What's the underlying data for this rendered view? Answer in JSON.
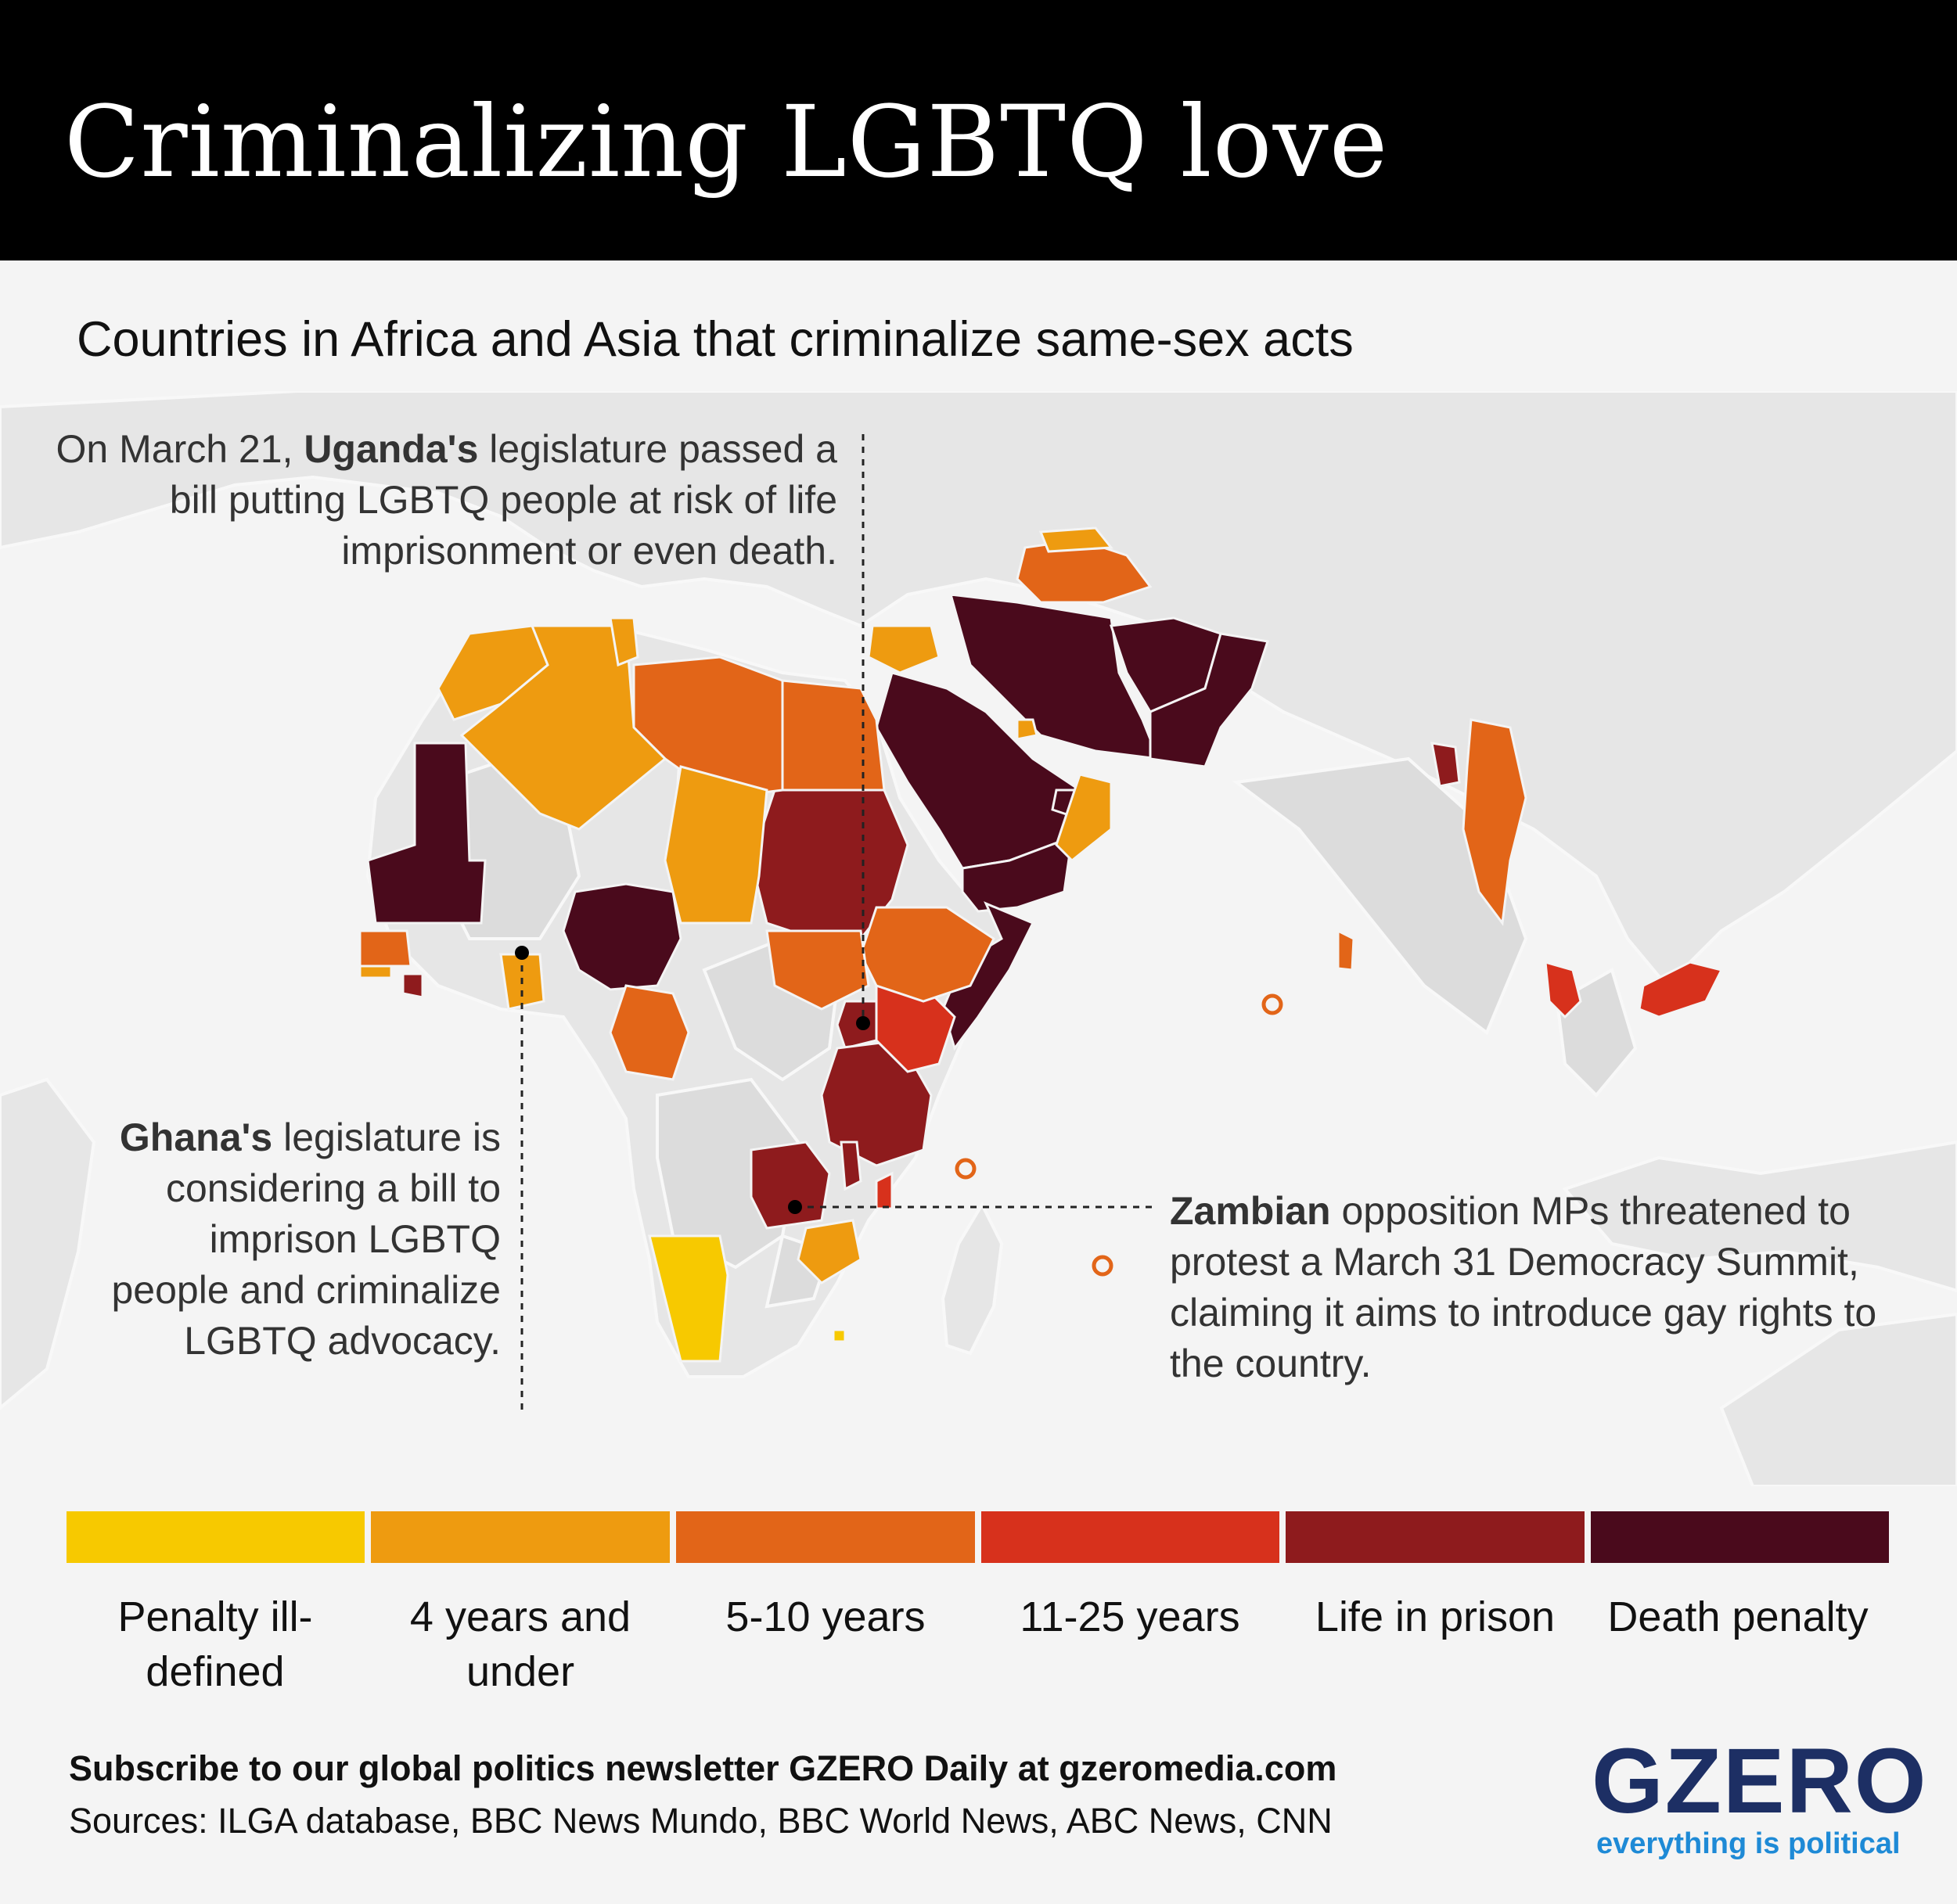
{
  "header": {
    "title": "Criminalizing LGBTQ love"
  },
  "subtitle": "Countries in Africa and Asia that criminalize same-sex acts",
  "map": {
    "region": "Africa, Middle East and South/Southeast Asia",
    "colors": {
      "penalty_ill_defined": "#f7c900",
      "four_years_and_under": "#ee9b10",
      "five_to_ten_years": "#e26518",
      "eleven_to_twentyfive_years": "#d7311c",
      "life_in_prison": "#8e1b1d",
      "death_penalty": "#4a0a1c",
      "not_criminalized": "#dcdcdc",
      "land": "#e9e9e9",
      "water": "#f4f4f4"
    },
    "icons": [
      "marker-dot-icon",
      "island-circle-icon"
    ]
  },
  "annotations": {
    "uganda": {
      "prefix": "On March 21, ",
      "country": "Uganda's",
      "suffix": " legislature passed a bill putting LGBTQ people at risk of life imprisonment or even death."
    },
    "ghana": {
      "country": "Ghana's",
      "suffix": " legislature is considering a bill to imprison LGBTQ people and criminalize LGBTQ advocacy."
    },
    "zambia": {
      "country": "Zambian",
      "suffix": " opposition MPs threatened to protest a March 31 Democracy Summit, claiming it aims to introduce gay rights to the country."
    }
  },
  "legend": [
    {
      "label": "Penalty ill-defined",
      "color": "#f7c900"
    },
    {
      "label": "4 years and under",
      "color": "#ee9b10"
    },
    {
      "label": "5-10 years",
      "color": "#e26518"
    },
    {
      "label": "11-25 years",
      "color": "#d7311c"
    },
    {
      "label": "Life in prison",
      "color": "#8e1b1d"
    },
    {
      "label": "Death penalty",
      "color": "#4a0a1c"
    }
  ],
  "footer": {
    "subscribe": "Subscribe to our global politics newsletter GZERO Daily at gzeromedia.com",
    "sources": "Sources: ILGA database, BBC News Mundo, BBC World News, ABC News, CNN"
  },
  "brand": {
    "logo": "GZERO",
    "tagline": "everything is political"
  }
}
